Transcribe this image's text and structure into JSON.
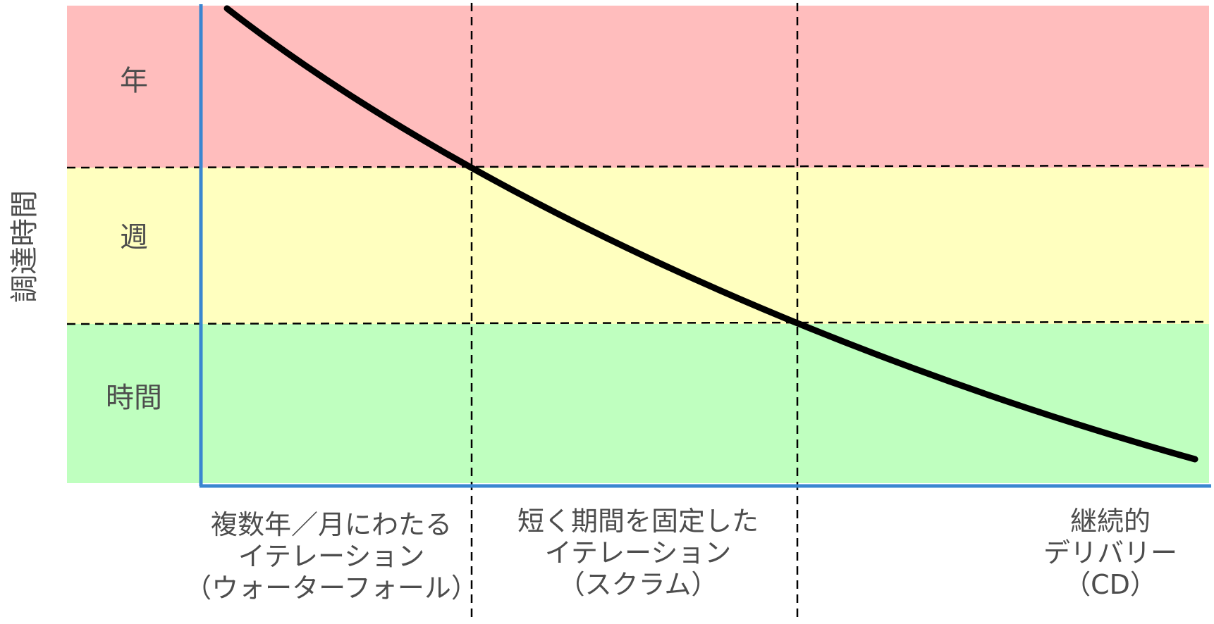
{
  "y_axis_title": "調達時間",
  "bands": [
    {
      "label": "年",
      "color": "#ffbdbd"
    },
    {
      "label": "週",
      "color": "#ffffbf"
    },
    {
      "label": "時間",
      "color": "#bfffbf"
    }
  ],
  "categories": [
    {
      "lines": [
        "複数年／月にわたる",
        "イテレーション",
        "（ウォーターフォール）"
      ]
    },
    {
      "lines": [
        "短く期間を固定した",
        "イテレーション",
        "（スクラム）"
      ]
    },
    {
      "lines": [
        "継続的",
        "デリバリー",
        "（CD）"
      ]
    }
  ],
  "colors": {
    "axis": "#3a86d0",
    "curve": "#000000",
    "divider": "#000000",
    "text": "#4d4d4d"
  }
}
